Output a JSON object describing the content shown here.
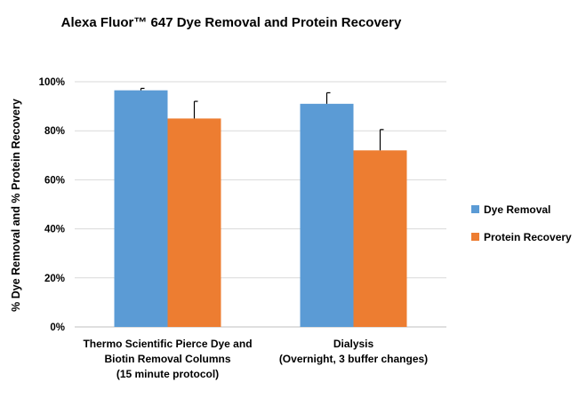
{
  "chart_data": {
    "type": "bar",
    "title": "Alexa Fluor™ 647 Dye Removal and Protein Recovery",
    "xlabel": "",
    "ylabel": "% Dye Removal and % Protein Recovery",
    "categories": [
      [
        "Thermo Scientific Pierce Dye and",
        "Biotin Removal Columns",
        "(15 minute protocol)"
      ],
      [
        "Dialysis",
        "(Overnight, 3 buffer changes)"
      ]
    ],
    "series": [
      {
        "name": "Dye Removal",
        "color": "#5b9bd5",
        "values": [
          96.5,
          91
        ],
        "errors": [
          0.8,
          4.5
        ]
      },
      {
        "name": "Protein Recovery",
        "color": "#ed7d31",
        "values": [
          85,
          72
        ],
        "errors": [
          7,
          8.5
        ]
      }
    ],
    "ylim": [
      0,
      100
    ],
    "yticks": [
      0,
      20,
      40,
      60,
      80,
      100
    ],
    "ytick_labels": [
      "0%",
      "20%",
      "40%",
      "60%",
      "80%",
      "100%"
    ],
    "grid": true,
    "legend_position": "right"
  }
}
